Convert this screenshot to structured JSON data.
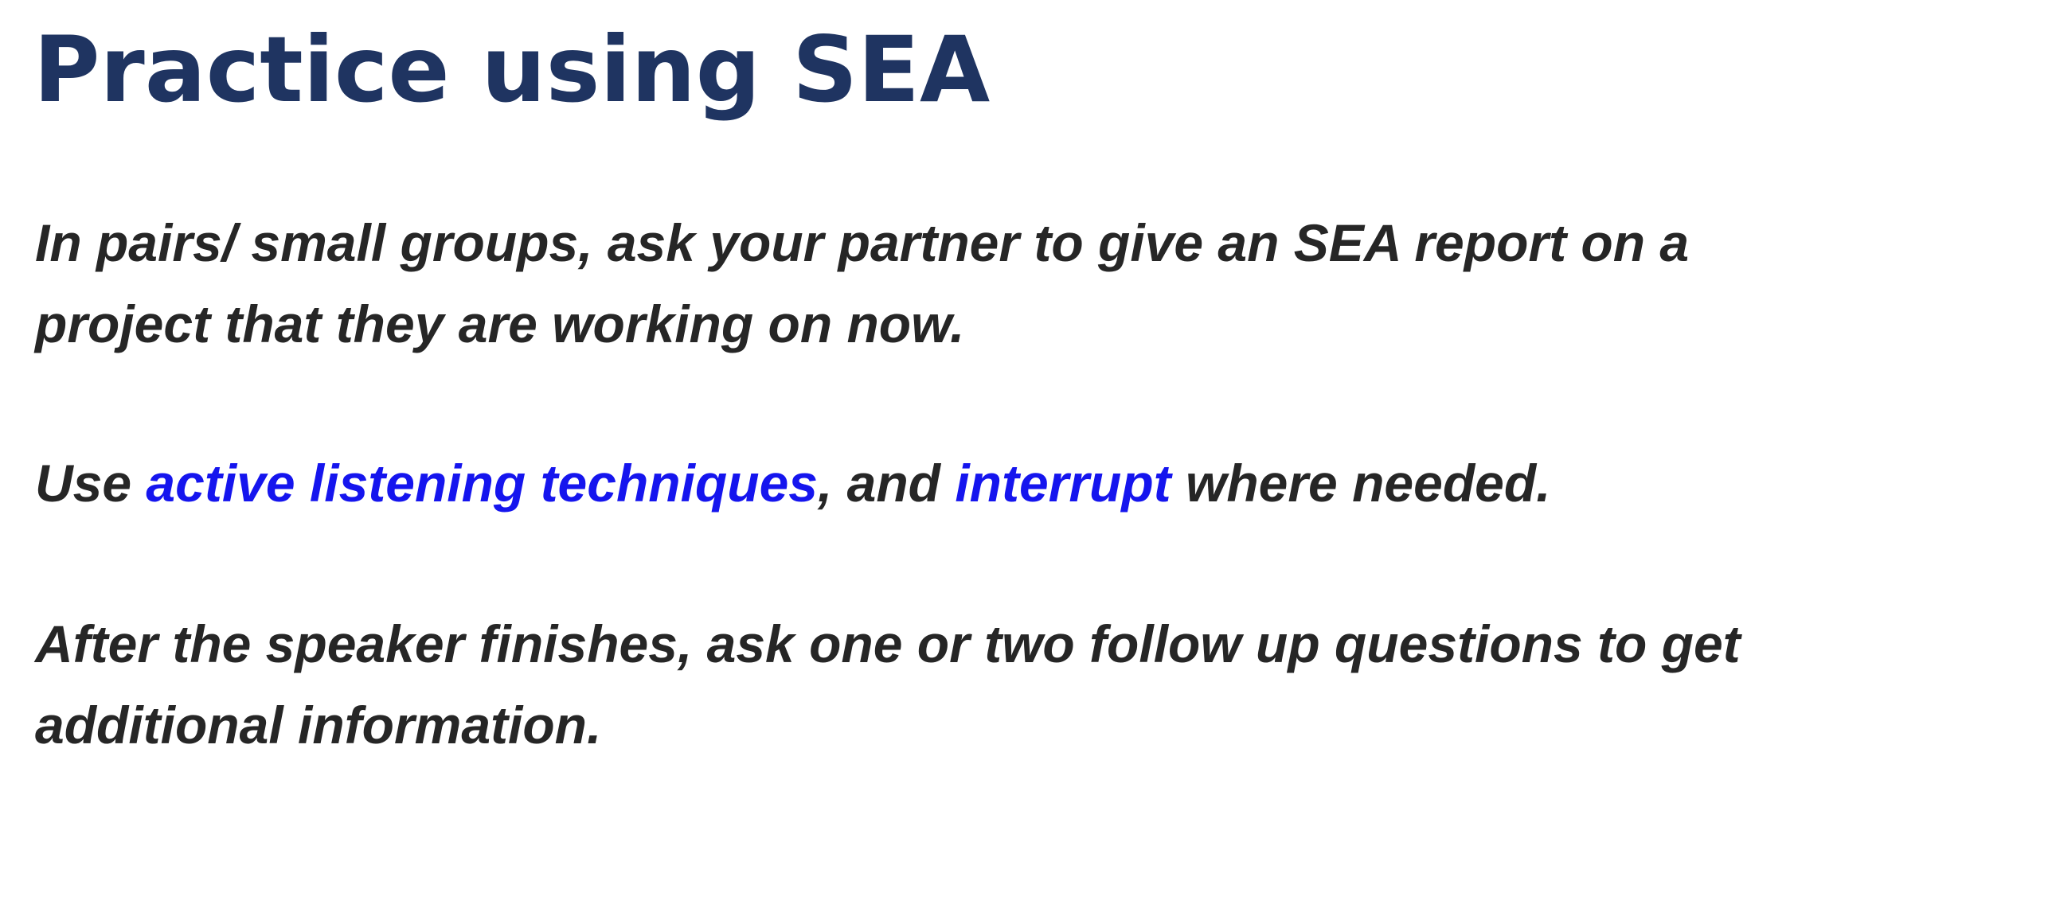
{
  "slide": {
    "title": "Practice using SEA",
    "paragraph1": {
      "line1": "In pairs/ small groups, ask your partner to give an SEA report on a",
      "line2": "project that they are working on now."
    },
    "paragraph2": {
      "prefix": "Use ",
      "link1": "active listening techniques",
      "middle": ", and ",
      "link2": "interrupt",
      "suffix": " where needed."
    },
    "paragraph3": {
      "line1": "After the speaker finishes, ask one or two follow up questions to get",
      "line2": "additional information."
    }
  },
  "colors": {
    "title": "#1f3461",
    "body_text": "#262626",
    "link": "#1515ee",
    "background": "#ffffff"
  }
}
